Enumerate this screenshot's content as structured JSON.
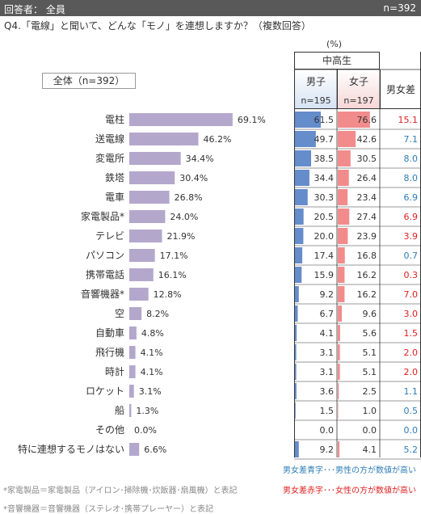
{
  "header": {
    "respondents": "回答者： 全員",
    "n_total": "n=392"
  },
  "question": "Q4.「電線」と聞いて、どんな「モノ」を連想しますか？（複数回答）",
  "unit": "(%)",
  "group_label": "中高生",
  "total_label": "全体（n=392）",
  "columns": {
    "male": {
      "label": "男子",
      "n": "n=195"
    },
    "female": {
      "label": "女子",
      "n": "n=197"
    },
    "diff": {
      "label": "男女差"
    }
  },
  "legend": {
    "blue": "男女差青字･･･男性の方が数値が高い",
    "red": "男女差赤字･･･女性の方が数値が高い"
  },
  "notes": [
    "*家電製品＝家電製品（アイロン･掃除機･炊飯器･扇風機）と表記",
    "*音響機器＝音響機器（ステレオ･携帯プレーヤー）と表記"
  ],
  "colors": {
    "bar": "#b4a7cc",
    "male": "#4a78c2",
    "female": "#f07878",
    "diff_blue": "#2e7db5",
    "diff_red": "#e02020"
  },
  "chart_data": {
    "type": "bar",
    "categories": [
      "電柱",
      "送電線",
      "変電所",
      "鉄塔",
      "電車",
      "家電製品*",
      "テレビ",
      "パソコン",
      "携帯電話",
      "音響機器*",
      "空",
      "自動車",
      "飛行機",
      "時計",
      "ロケット",
      "船",
      "その他",
      "特に連想するモノはない"
    ],
    "labels": [
      "69.1%",
      "46.2%",
      "34.4%",
      "30.4%",
      "26.8%",
      "24.0%",
      "21.9%",
      "17.1%",
      "16.1%",
      "12.8%",
      "8.2%",
      "4.8%",
      "4.1%",
      "4.1%",
      "3.1%",
      "1.3%",
      "0.0%",
      "6.6%"
    ],
    "series": [
      {
        "name": "全体（n=392）",
        "values": [
          69.1,
          46.2,
          34.4,
          30.4,
          26.8,
          24.0,
          21.9,
          17.1,
          16.1,
          12.8,
          8.2,
          4.8,
          4.1,
          4.1,
          3.1,
          1.3,
          0.0,
          6.6
        ]
      },
      {
        "name": "男子",
        "values": [
          "61.5",
          "49.7",
          "38.5",
          "34.4",
          "30.3",
          "20.5",
          "20.0",
          "17.4",
          "15.9",
          "9.2",
          "6.7",
          "4.1",
          "3.1",
          "3.1",
          "3.6",
          "1.5",
          "0.0",
          "9.2"
        ]
      },
      {
        "name": "女子",
        "values": [
          "76.6",
          "42.6",
          "30.5",
          "26.4",
          "23.4",
          "27.4",
          "23.9",
          "16.8",
          "16.2",
          "16.2",
          "9.6",
          "5.6",
          "5.1",
          "5.1",
          "2.5",
          "1.0",
          "0.0",
          "4.1"
        ]
      },
      {
        "name": "男女差",
        "values": [
          "15.1",
          "7.1",
          "8.0",
          "8.0",
          "6.9",
          "6.9",
          "3.9",
          "0.7",
          "0.3",
          "7.0",
          "3.0",
          "1.5",
          "2.0",
          "2.0",
          "1.1",
          "0.5",
          "0.0",
          "5.2"
        ]
      }
    ],
    "diff_color": [
      "red",
      "blue",
      "blue",
      "blue",
      "blue",
      "red",
      "red",
      "blue",
      "red",
      "red",
      "red",
      "red",
      "red",
      "red",
      "blue",
      "blue",
      "blue",
      "blue"
    ],
    "xlim": [
      0,
      100
    ]
  }
}
